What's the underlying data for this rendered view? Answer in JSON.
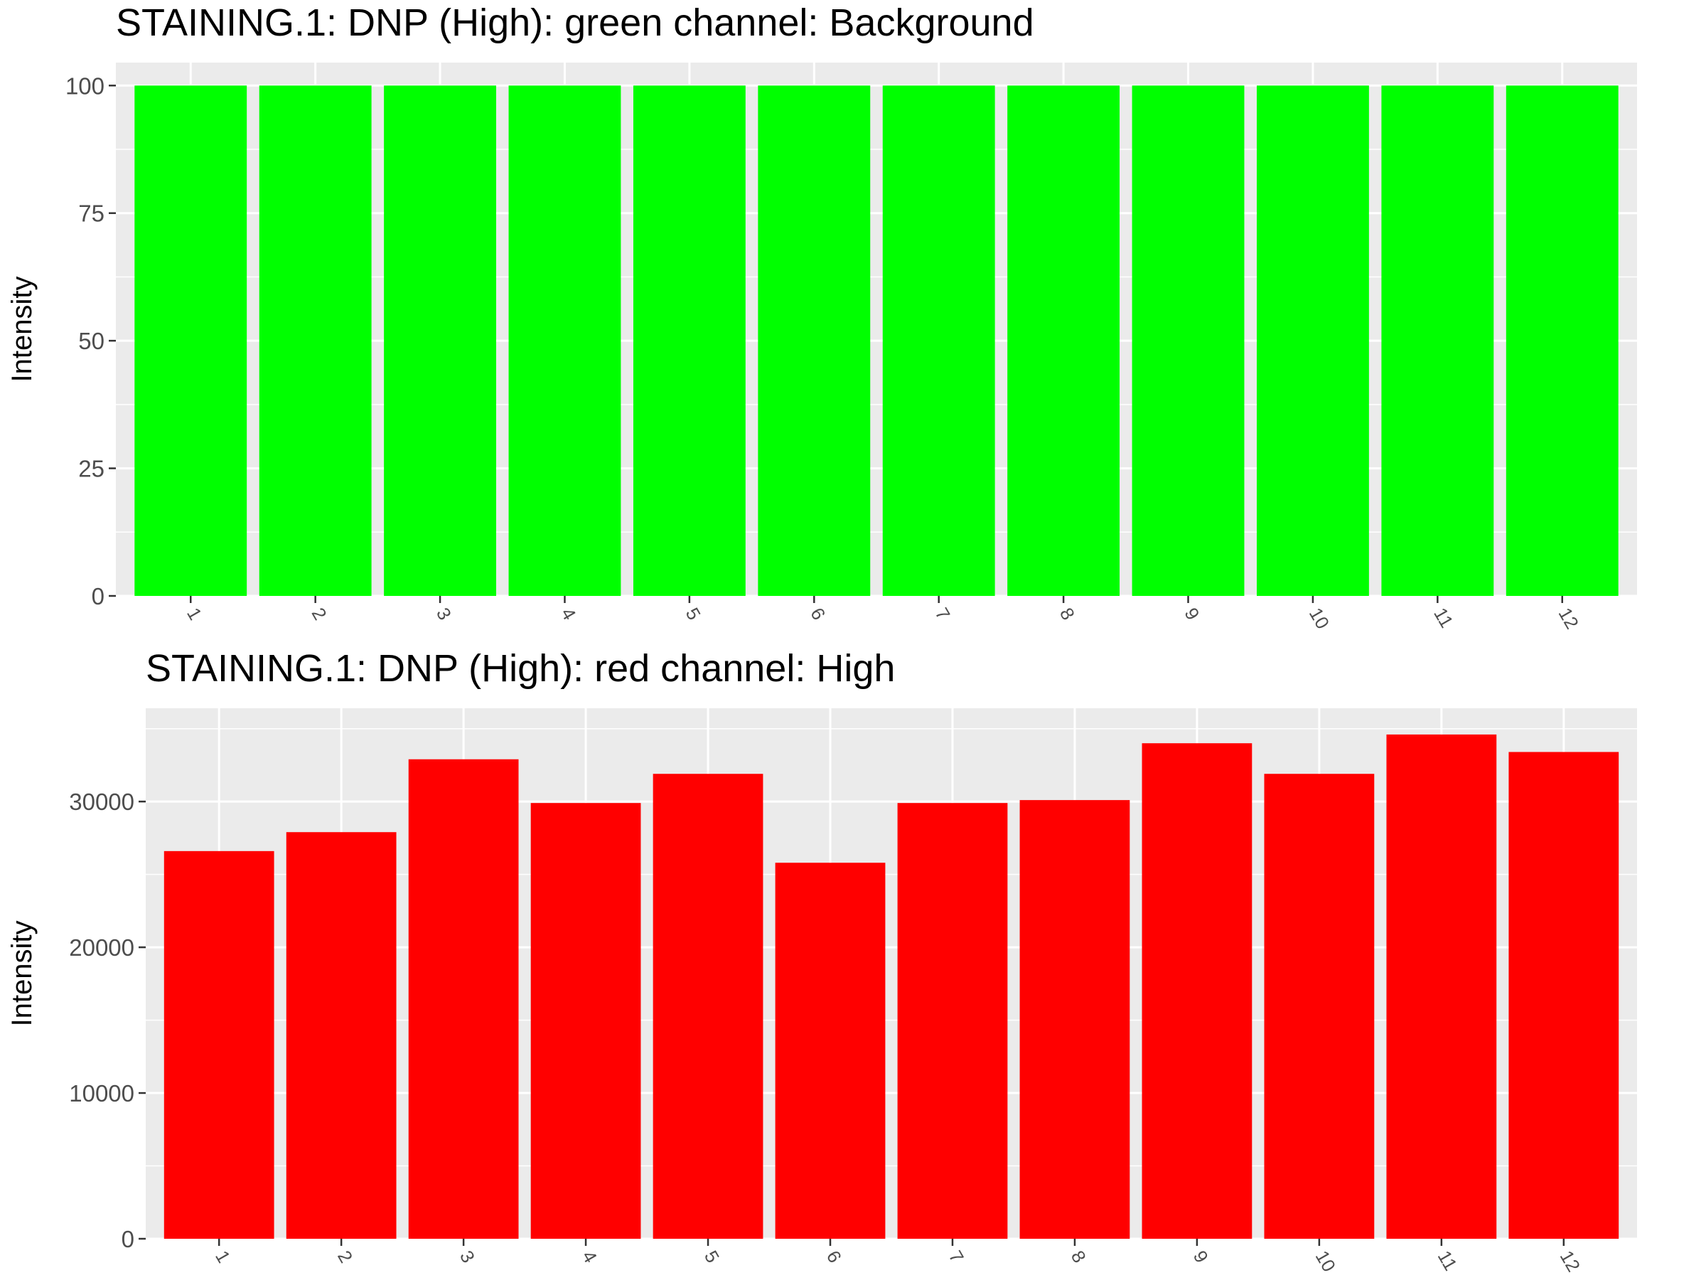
{
  "charts": [
    {
      "chart_data": {
        "type": "bar",
        "title": "STAINING.1: DNP (High): green channel: Background",
        "xlabel": "",
        "ylabel": "Intensity",
        "categories": [
          "1",
          "2",
          "3",
          "4",
          "5",
          "6",
          "7",
          "8",
          "9",
          "10",
          "11",
          "12"
        ],
        "values": [
          100,
          100,
          100,
          100,
          100,
          100,
          100,
          100,
          100,
          100,
          100,
          100
        ],
        "ylim": [
          0,
          104.5
        ],
        "yticks": [
          0,
          25,
          50,
          75,
          100
        ],
        "ytick_labels": [
          "0",
          "25",
          "50",
          "75",
          "100"
        ],
        "bar_color": "#00ff00",
        "panel_color": "#ebebeb",
        "grid": true,
        "legend": "none"
      }
    },
    {
      "chart_data": {
        "type": "bar",
        "title": "STAINING.1: DNP (High): red channel: High",
        "xlabel": "",
        "ylabel": "Intensity",
        "categories": [
          "1",
          "2",
          "3",
          "4",
          "5",
          "6",
          "7",
          "8",
          "9",
          "10",
          "11",
          "12"
        ],
        "values": [
          26600,
          27900,
          32900,
          29900,
          31900,
          25800,
          29900,
          30100,
          34000,
          31900,
          34600,
          33400
        ],
        "ylim": [
          0,
          36400
        ],
        "yticks": [
          0,
          10000,
          20000,
          30000
        ],
        "ytick_labels": [
          "0",
          "10000",
          "20000",
          "30000"
        ],
        "bar_color": "#ff0000",
        "panel_color": "#ebebeb",
        "grid": true,
        "legend": "none"
      }
    }
  ]
}
